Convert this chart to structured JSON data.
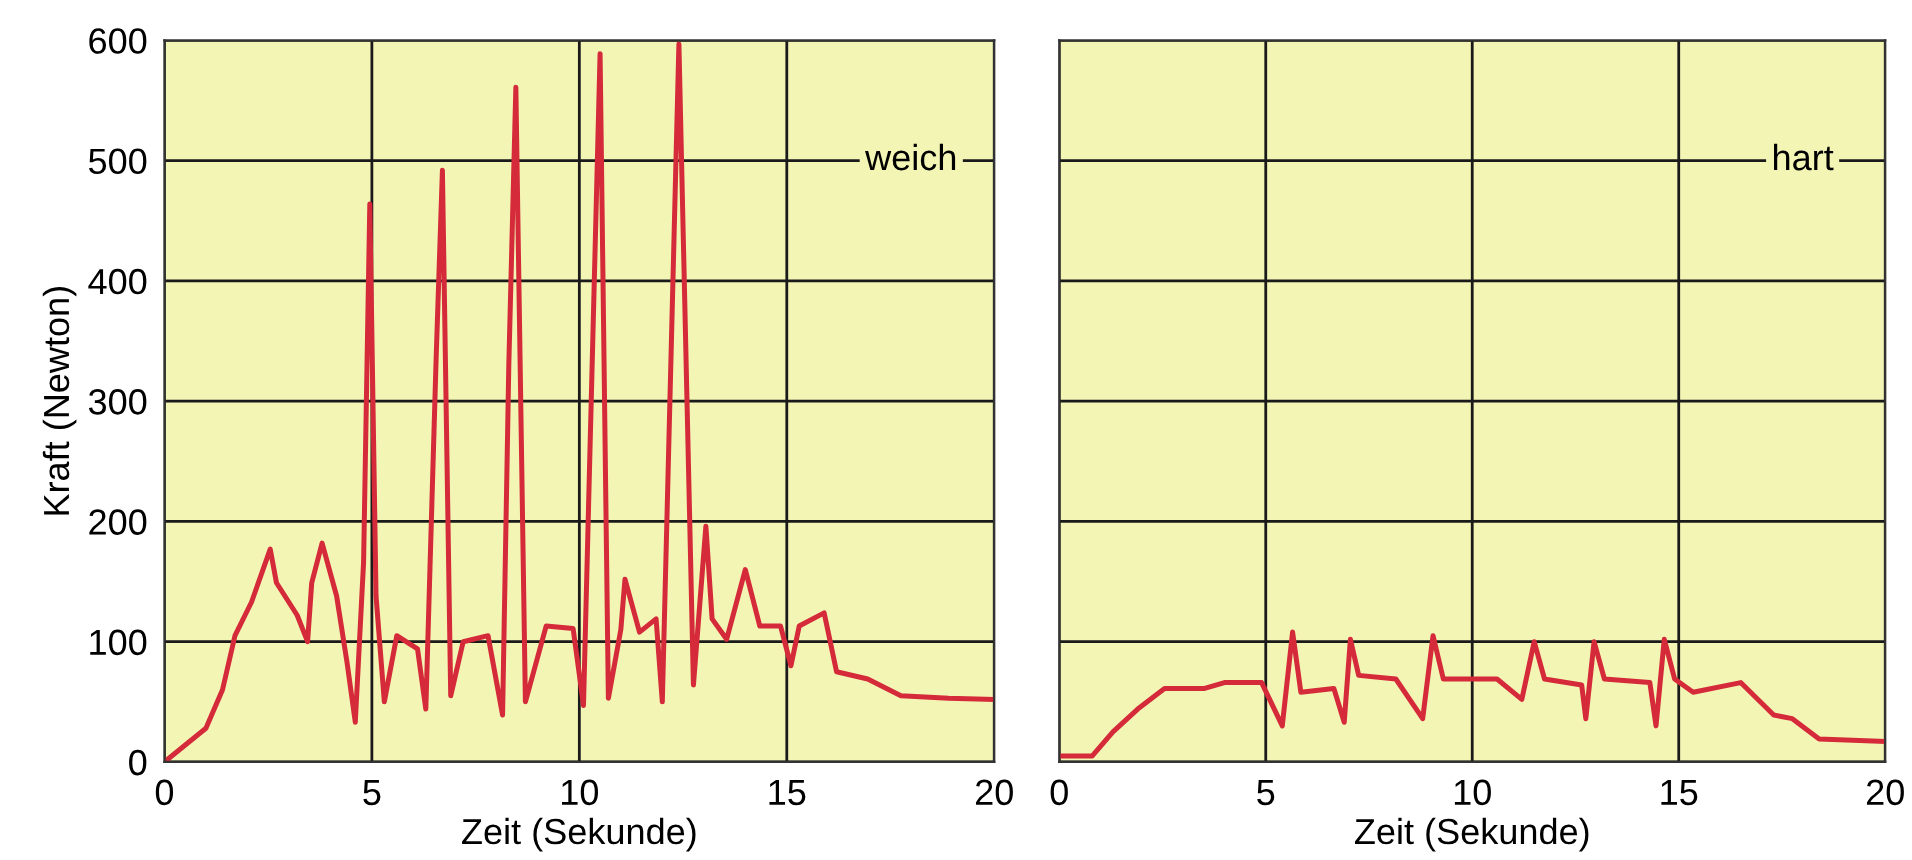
{
  "chart_data": [
    {
      "type": "line",
      "xlabel": "Zeit (Sekunde)",
      "ylabel": "Kraft (Newton)",
      "xlim": [
        0,
        20
      ],
      "ylim": [
        0,
        600
      ],
      "xticks": [
        0,
        5,
        10,
        15,
        20
      ],
      "yticks": [
        0,
        100,
        200,
        300,
        400,
        500,
        600
      ],
      "grid": true,
      "series": [
        {
          "name": "weich",
          "color": "#d42a3a",
          "x": [
            0,
            1.0,
            1.4,
            1.7,
            2.1,
            2.55,
            2.7,
            3.2,
            3.45,
            3.55,
            3.8,
            4.15,
            4.4,
            4.6,
            4.8,
            4.95,
            5.1,
            5.3,
            5.6,
            6.1,
            6.3,
            6.55,
            6.7,
            6.9,
            7.2,
            7.8,
            8.15,
            8.3,
            8.47,
            8.7,
            9.2,
            9.85,
            10.1,
            10.5,
            10.7,
            11.0,
            11.1,
            11.45,
            11.85,
            12.0,
            12.4,
            12.75,
            13.05,
            13.2,
            13.55,
            14.0,
            14.35,
            14.85,
            15.1,
            15.3,
            15.9,
            16.2,
            16.95,
            17.75,
            18.9,
            20
          ],
          "values": [
            0,
            28,
            60,
            105,
            133,
            177,
            149,
            122,
            100,
            149,
            182,
            138,
            83,
            33,
            166,
            464,
            138,
            50,
            105,
            94,
            44,
            337,
            492,
            55,
            100,
            105,
            39,
            330,
            561,
            50,
            113,
            111,
            47,
            589,
            53,
            110,
            152,
            108,
            119,
            50,
            597,
            64,
            196,
            119,
            102,
            160,
            113,
            113,
            80,
            113,
            124,
            75,
            69,
            55,
            53,
            52
          ]
        }
      ]
    },
    {
      "type": "line",
      "xlabel": "Zeit (Sekunde)",
      "xlim": [
        0,
        20
      ],
      "ylim": [
        0,
        600
      ],
      "xticks": [
        0,
        5,
        10,
        15,
        20
      ],
      "yticks": [
        0,
        100,
        200,
        300,
        400,
        500,
        600
      ],
      "grid": true,
      "tick_labels": "x",
      "series": [
        {
          "name": "hart",
          "color": "#d42a3a",
          "x": [
            0,
            0.8,
            1.3,
            1.9,
            2.55,
            3.5,
            4.0,
            4.9,
            5.4,
            5.65,
            5.85,
            6.65,
            6.9,
            7.05,
            7.25,
            8.15,
            8.8,
            9.05,
            9.3,
            10.6,
            11.2,
            11.5,
            11.75,
            12.65,
            12.75,
            12.95,
            13.2,
            14.3,
            14.45,
            14.65,
            14.9,
            15.35,
            16.5,
            17.3,
            17.75,
            18.4,
            20
          ],
          "values": [
            5,
            5,
            25,
            44,
            61,
            61,
            66,
            66,
            30,
            108,
            58,
            61,
            33,
            102,
            72,
            69,
            36,
            105,
            69,
            69,
            52,
            100,
            69,
            64,
            36,
            100,
            69,
            66,
            30,
            102,
            69,
            58,
            66,
            39,
            36,
            19,
            17
          ]
        }
      ]
    }
  ]
}
